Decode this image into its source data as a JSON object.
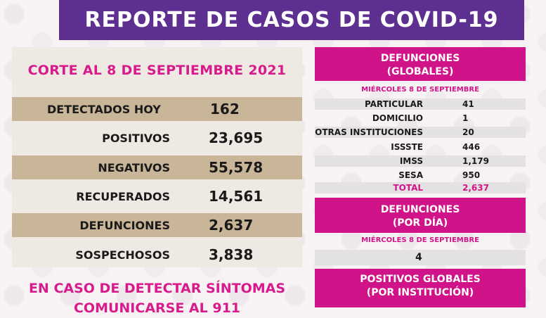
{
  "header": {
    "title": "REPORTE DE CASOS DE COVID-19"
  },
  "left": {
    "corte": "CORTE AL 8 DE SEPTIEMBRE 2021",
    "rows": [
      {
        "label": "DETECTADOS HOY",
        "value": "162"
      },
      {
        "label": "POSITIVOS",
        "value": "23,695"
      },
      {
        "label": "NEGATIVOS",
        "value": "55,578"
      },
      {
        "label": "RECUPERADOS",
        "value": "14,561"
      },
      {
        "label": "DEFUNCIONES",
        "value": "2,637"
      },
      {
        "label": "SOSPECHOSOS",
        "value": "3,838"
      }
    ],
    "warning_line1": "EN CASO DE DETECTAR SÍNTOMAS",
    "warning_line2": "COMUNICARSE AL 911"
  },
  "right": {
    "global_title_1": "DEFUNCIONES",
    "global_title_2": "(GLOBALES)",
    "global_date": "MIÉRCOLES 8 DE SEPTIEMBRE",
    "global_rows": [
      {
        "label": "PARTICULAR",
        "value": "41"
      },
      {
        "label": "DOMICILIO",
        "value": "1"
      },
      {
        "label": "OTRAS INSTITUCIONES",
        "value": "20"
      },
      {
        "label": "ISSSTE",
        "value": "446"
      },
      {
        "label": "IMSS",
        "value": "1,179"
      },
      {
        "label": "SESA",
        "value": "950"
      },
      {
        "label": "TOTAL",
        "value": "2,637"
      }
    ],
    "day_title_1": "DEFUNCIONES",
    "day_title_2": "(POR DÍA)",
    "day_date": "MIÉRCOLES 8 DE SEPTIEMBRE",
    "day_value": "4",
    "pos_title_1": "POSITIVOS GLOBALES",
    "pos_title_2": "(POR INSTITUCIÓN)"
  },
  "colors": {
    "header": "#5c2f90",
    "magenta": "#d1138a",
    "tan": "#c9b597"
  }
}
